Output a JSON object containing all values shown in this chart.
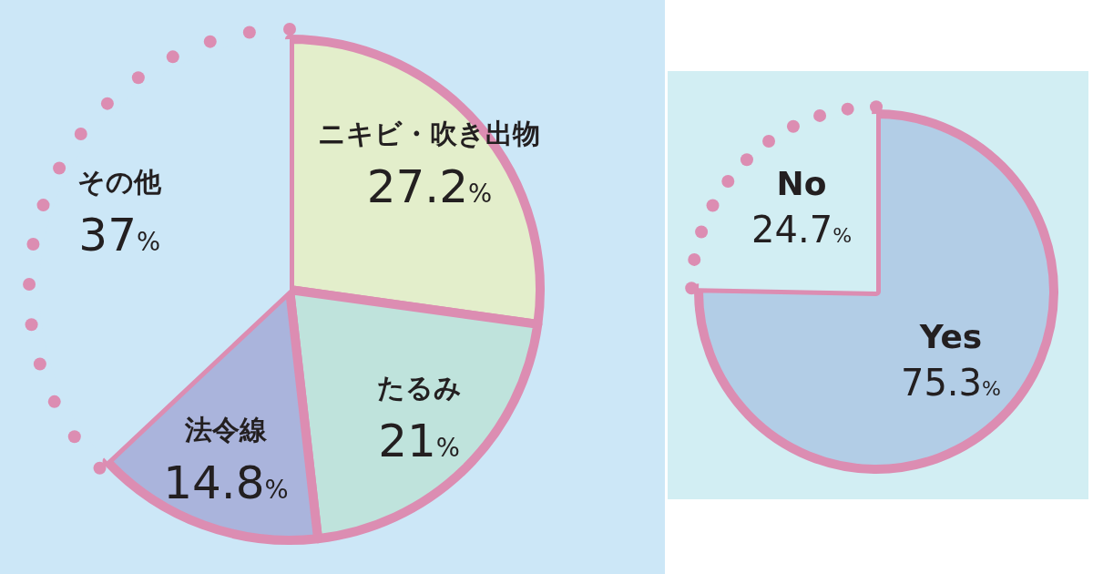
{
  "chart_data": [
    {
      "type": "pie",
      "categories": [
        "ニキビ・吹き出物",
        "たるみ",
        "法令線",
        "その他"
      ],
      "values": [
        27.2,
        21,
        14.8,
        37
      ],
      "colors": [
        "#e3eecb",
        "#bfe3dc",
        "#aab4dc",
        "#cce7f7"
      ],
      "value_labels": [
        "27.2%",
        "21%",
        "14.8%",
        "37%"
      ]
    },
    {
      "type": "pie",
      "categories": [
        "Yes",
        "No"
      ],
      "values": [
        75.3,
        24.7
      ],
      "colors": [
        "#b2cde6",
        "#d2eef3"
      ],
      "value_labels": [
        "75.3%",
        "24.7%"
      ]
    }
  ]
}
